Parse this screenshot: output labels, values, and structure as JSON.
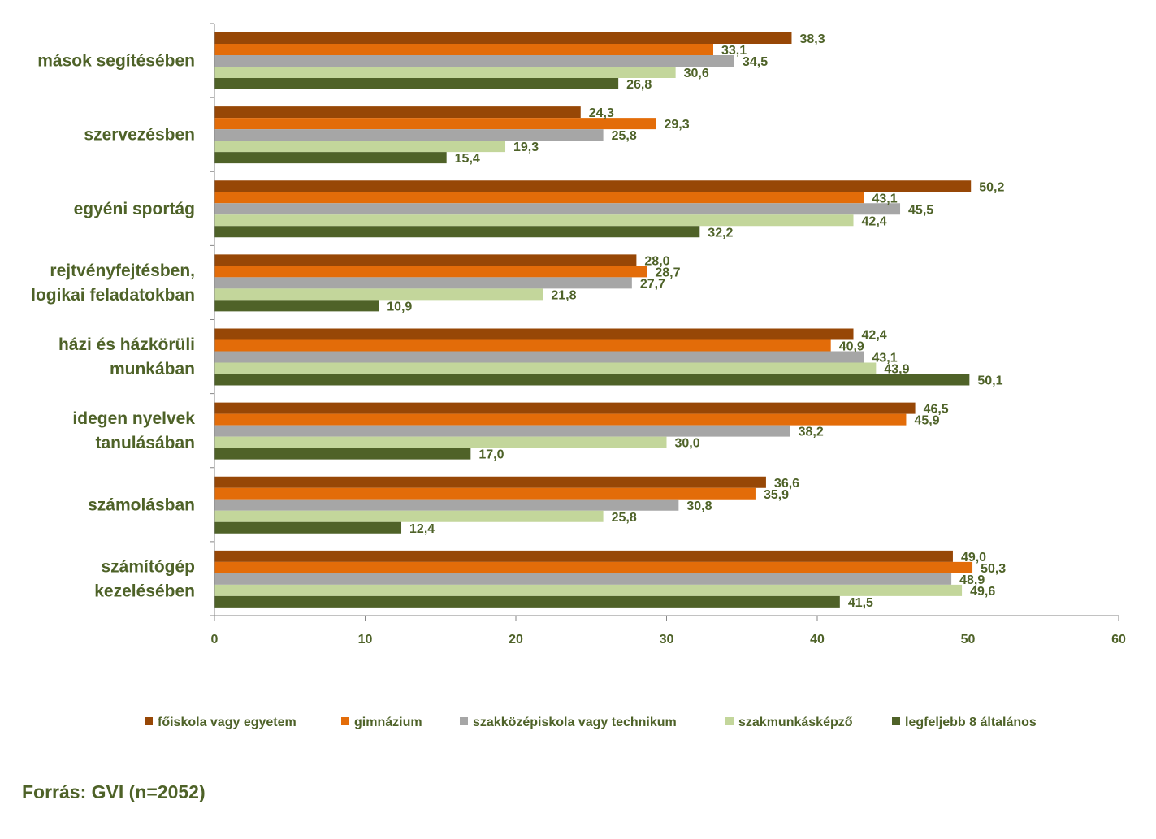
{
  "chart_data": {
    "type": "bar",
    "orientation": "horizontal",
    "categories": [
      "mások segítésében",
      "szervezésben",
      "egyéni sportág",
      "rejtvényfejtésben, logikai feladatokban",
      "házi és házkörüli munkában",
      "idegen nyelvek tanulásában",
      "számolásban",
      "számítógép kezelésében"
    ],
    "category_lines": [
      [
        "mások segítésében"
      ],
      [
        "szervezésben"
      ],
      [
        "egyéni sportág"
      ],
      [
        "rejtvényfejtésben,",
        "logikai feladatokban"
      ],
      [
        "házi és házkörüli",
        "munkában"
      ],
      [
        "idegen nyelvek",
        "tanulásában"
      ],
      [
        "számolásban"
      ],
      [
        "számítógép",
        "kezelésében"
      ]
    ],
    "series": [
      {
        "name": "főiskola vagy egyetem",
        "color": "#974706",
        "values": [
          38.3,
          24.3,
          50.2,
          28.0,
          42.4,
          46.5,
          36.6,
          49.0
        ]
      },
      {
        "name": "gimnázium",
        "color": "#E36C09",
        "values": [
          33.1,
          29.3,
          43.1,
          28.7,
          40.9,
          45.9,
          35.9,
          50.3
        ]
      },
      {
        "name": "szakközépiskola vagy technikum",
        "color": "#A6A6A6",
        "values": [
          34.5,
          25.8,
          45.5,
          27.7,
          43.1,
          38.2,
          30.8,
          48.9
        ]
      },
      {
        "name": "szakmunkásképző",
        "color": "#C3D69B",
        "values": [
          30.6,
          19.3,
          42.4,
          21.8,
          43.9,
          30.0,
          25.8,
          49.6
        ]
      },
      {
        "name": "legfeljebb 8 általános",
        "color": "#4F6228",
        "values": [
          26.8,
          15.4,
          32.2,
          10.9,
          50.1,
          17.0,
          12.4,
          41.5
        ]
      }
    ],
    "value_labels": [
      [
        "38,3",
        "24,3",
        "50,2",
        "28,0",
        "42,4",
        "46,5",
        "36,6",
        "49,0"
      ],
      [
        "33,1",
        "29,3",
        "43,1",
        "28,7",
        "40,9",
        "45,9",
        "35,9",
        "50,3"
      ],
      [
        "34,5",
        "25,8",
        "45,5",
        "27,7",
        "43,1",
        "38,2",
        "30,8",
        "48,9"
      ],
      [
        "30,6",
        "19,3",
        "42,4",
        "21,8",
        "43,9",
        "30,0",
        "25,8",
        "49,6"
      ],
      [
        "26,8",
        "15,4",
        "32,2",
        "10,9",
        "50,1",
        "17,0",
        "12,4",
        "41,5"
      ]
    ],
    "xlim": [
      0,
      60
    ],
    "xticks": [
      0,
      10,
      20,
      30,
      40,
      50,
      60
    ],
    "title": "",
    "xlabel": "",
    "ylabel": "",
    "grid": false,
    "legend_position": "bottom"
  },
  "source_text": "Forrás: GVI (n=2052)",
  "colors": {
    "text": "#4E6228",
    "axis": "#868686"
  }
}
